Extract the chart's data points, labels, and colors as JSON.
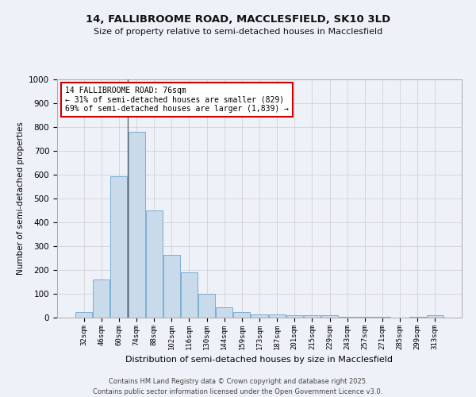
{
  "title1": "14, FALLIBROOME ROAD, MACCLESFIELD, SK10 3LD",
  "title2": "Size of property relative to semi-detached houses in Macclesfield",
  "xlabel": "Distribution of semi-detached houses by size in Macclesfield",
  "ylabel": "Number of semi-detached properties",
  "categories": [
    "32sqm",
    "46sqm",
    "60sqm",
    "74sqm",
    "88sqm",
    "102sqm",
    "116sqm",
    "130sqm",
    "144sqm",
    "159sqm",
    "173sqm",
    "187sqm",
    "201sqm",
    "215sqm",
    "229sqm",
    "243sqm",
    "257sqm",
    "271sqm",
    "285sqm",
    "299sqm",
    "313sqm"
  ],
  "values": [
    25,
    160,
    595,
    780,
    450,
    265,
    190,
    100,
    45,
    25,
    15,
    15,
    10,
    10,
    10,
    5,
    5,
    5,
    0,
    5,
    10
  ],
  "bar_color": "#c9daea",
  "bar_edge_color": "#7bafd4",
  "annotation_title": "14 FALLIBROOME ROAD: 76sqm",
  "annotation_line1": "← 31% of semi-detached houses are smaller (829)",
  "annotation_line2": "69% of semi-detached houses are larger (1,839) →",
  "annotation_box_color": "#ffffff",
  "annotation_box_edge": "#cc0000",
  "vline_x": 2.5,
  "vline_color": "#666666",
  "ylim": [
    0,
    1000
  ],
  "yticks": [
    0,
    100,
    200,
    300,
    400,
    500,
    600,
    700,
    800,
    900,
    1000
  ],
  "grid_color": "#cccccc",
  "background_color": "#eef2f8",
  "footer1": "Contains HM Land Registry data © Crown copyright and database right 2025.",
  "footer2": "Contains public sector information licensed under the Open Government Licence v3.0."
}
